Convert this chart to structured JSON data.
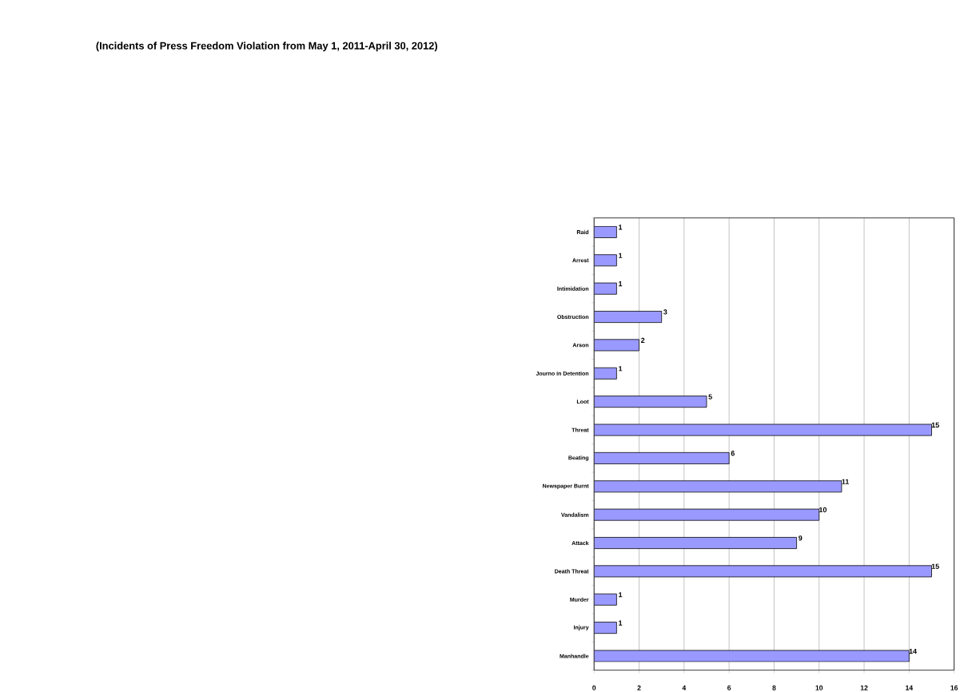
{
  "chart_data": {
    "type": "bar",
    "orientation": "horizontal",
    "title": "(Incidents of Press Freedom Violation from May 1, 2011-April 30, 2012)",
    "categories": [
      "Raid",
      "Arrest",
      "Intimidation",
      "Obstruction",
      "Arson",
      "Journo in Detention",
      "Loot",
      "Threat",
      "Beating",
      "Newspaper Burnt",
      "Vandalism",
      "Attack",
      "Death Threat",
      "Murder",
      "Injury",
      "Manhandle"
    ],
    "values": [
      1,
      1,
      1,
      3,
      2,
      1,
      5,
      15,
      6,
      11,
      10,
      9,
      15,
      1,
      1,
      14
    ],
    "color": "#9999ff",
    "xlim": [
      0,
      16
    ],
    "xticks": [
      0,
      2,
      4,
      6,
      8,
      10,
      12,
      14,
      16
    ],
    "grid": "x",
    "data_labels": true
  }
}
